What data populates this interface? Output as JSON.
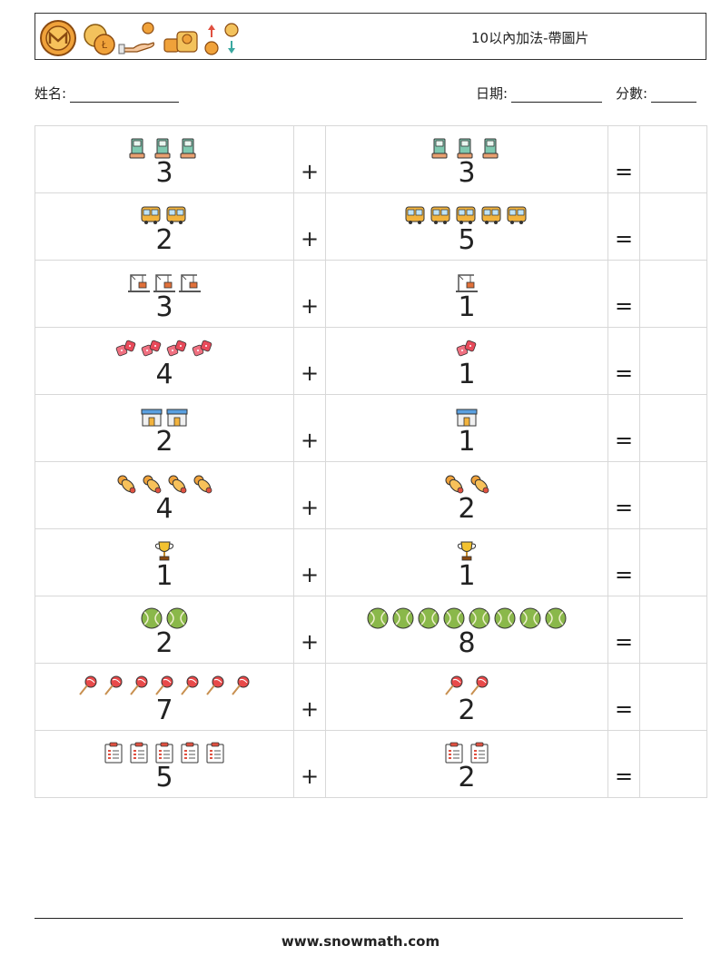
{
  "header": {
    "title": "10以內加法-帶圖片",
    "icons": [
      "monero-coin-icon",
      "coins-icon",
      "hand-coin-icon",
      "coin-stack-icon",
      "exchange-icon"
    ]
  },
  "info": {
    "name_label": "姓名:",
    "date_label": "日期:",
    "score_label": "分數:"
  },
  "operators": {
    "plus": "+",
    "equals": "="
  },
  "problems": [
    {
      "a": "3",
      "a_icon": "atm-icon",
      "b": "3",
      "b_icon": "atm-icon"
    },
    {
      "a": "2",
      "a_icon": "bus-icon",
      "b": "5",
      "b_icon": "bus-icon"
    },
    {
      "a": "3",
      "a_icon": "crane-icon",
      "b": "1",
      "b_icon": "crane-icon"
    },
    {
      "a": "4",
      "a_icon": "dice-icon",
      "b": "1",
      "b_icon": "dice-icon"
    },
    {
      "a": "2",
      "a_icon": "shop-icon",
      "b": "1",
      "b_icon": "shop-icon"
    },
    {
      "a": "4",
      "a_icon": "pacifier-icon",
      "b": "2",
      "b_icon": "pacifier-icon"
    },
    {
      "a": "1",
      "a_icon": "trophy-icon",
      "b": "1",
      "b_icon": "trophy-icon"
    },
    {
      "a": "2",
      "a_icon": "tennis-ball-icon",
      "b": "8",
      "b_icon": "tennis-ball-icon"
    },
    {
      "a": "7",
      "a_icon": "lollipop-icon",
      "b": "2",
      "b_icon": "lollipop-icon"
    },
    {
      "a": "5",
      "a_icon": "clipboard-icon",
      "b": "2",
      "b_icon": "clipboard-icon"
    }
  ],
  "footer": {
    "url": "www.snowmath.com"
  }
}
